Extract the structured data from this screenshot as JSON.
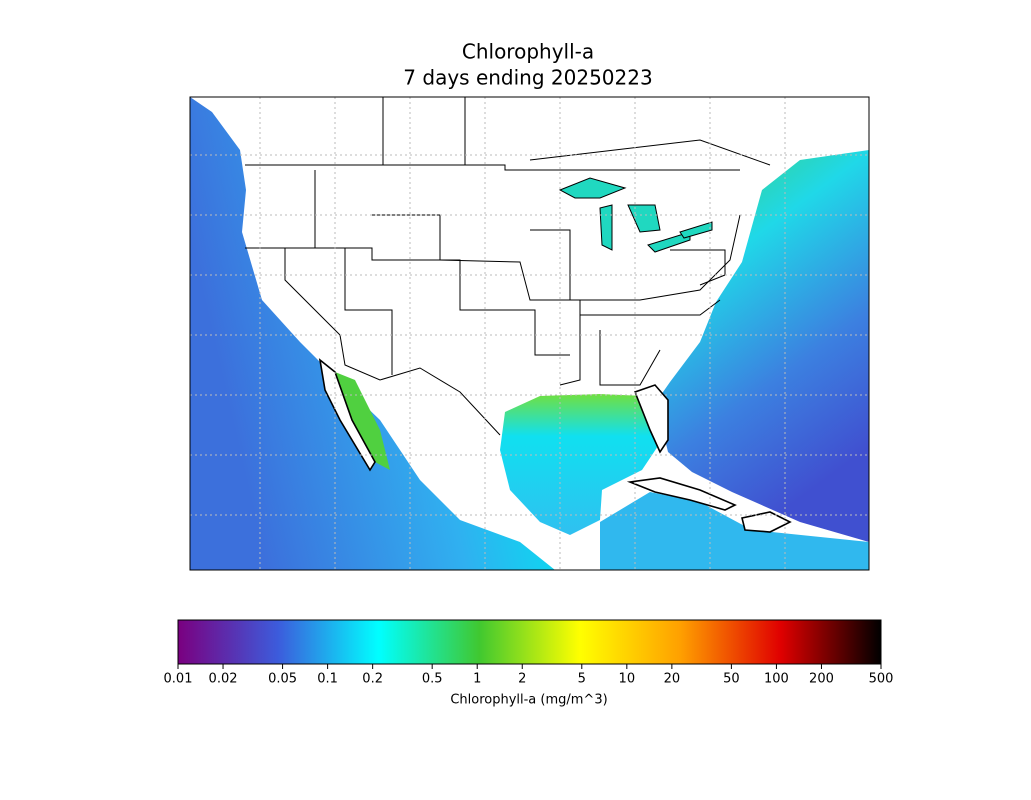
{
  "title": [
    "Chlorophyll-a",
    "7 days ending 20250223"
  ],
  "colorbar": {
    "label": "Chlorophyll-a (mg/m^3)",
    "log": true,
    "lim": [
      0.01,
      500
    ],
    "ticks": [
      0.01,
      0.02,
      0.05,
      0.1,
      0.2,
      0.5,
      1,
      2,
      5,
      10,
      20,
      50,
      100,
      200,
      500
    ],
    "colors": [
      "#7a0080",
      "#3c5cdc",
      "#00ffff",
      "#40c830",
      "#ffff00",
      "#ffa000",
      "#e00000",
      "#000000"
    ]
  }
}
